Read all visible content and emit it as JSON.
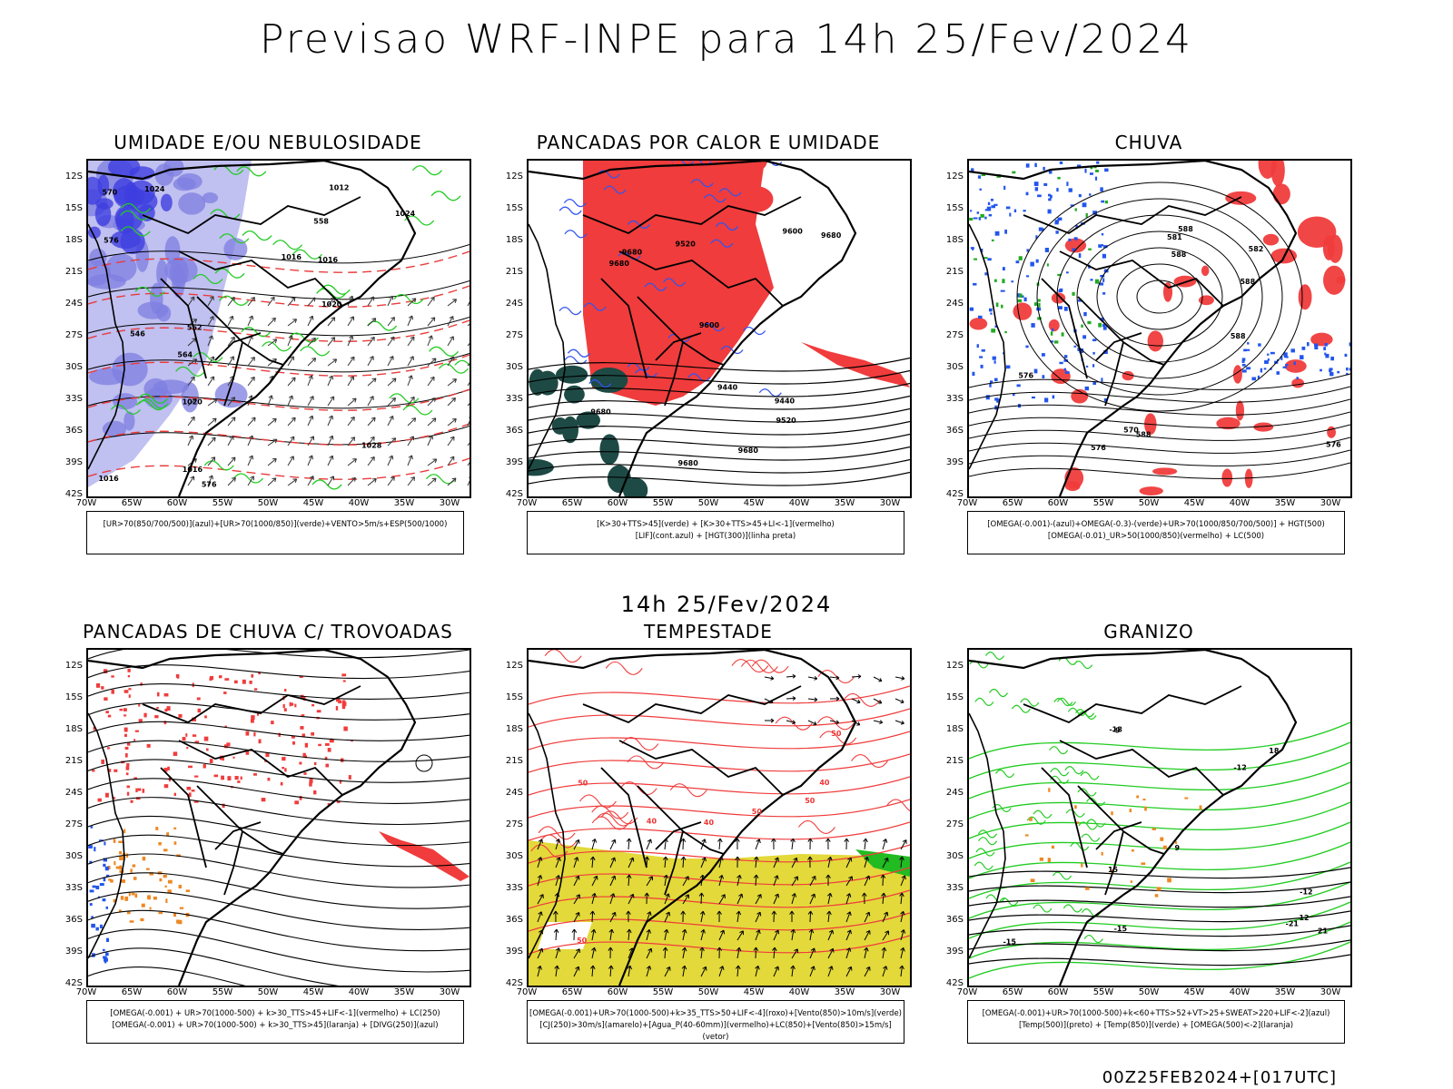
{
  "title": "Previsao WRF-INPE  para 14h 25/Fev/2024",
  "mid_title": "14h 25/Fev/2024",
  "footer": "00Z25FEB2024+[017UTC]",
  "axes": {
    "lat_labels": [
      "12S",
      "15S",
      "18S",
      "21S",
      "24S",
      "27S",
      "30S",
      "33S",
      "36S",
      "39S",
      "42S"
    ],
    "lon_labels": [
      "70W",
      "65W",
      "60W",
      "55W",
      "50W",
      "45W",
      "40W",
      "35W",
      "30W"
    ]
  },
  "panels": [
    {
      "id": "p1",
      "title": "UMIDADE E/OU NEBULOSIDADE",
      "legend_lines": [
        "[UR>70(850/700/500)](azul)+[UR>70(1000/850)](verde)+VENTO>5m/s+ESP(500/1000)"
      ],
      "contour_labels": [
        "1016",
        "1016",
        "1016",
        "1016",
        "1020",
        "1020",
        "1024",
        "1024",
        "1028",
        "1012",
        "576",
        "576",
        "570",
        "564",
        "558",
        "552",
        "546"
      ],
      "colors": {
        "humid_high": "#7e7ee0",
        "humid_mid": "#b9b9f0",
        "humid_low": "#3f3fe0",
        "surface": "#22cc22",
        "thickness": "#e83c3c"
      }
    },
    {
      "id": "p2",
      "title": "PANCADAS POR CALOR E UMIDADE",
      "legend_lines": [
        "[K>30+TTS>45](verde) + [K>30+TTS>45+LI<-1](vermelho)",
        "[LIF](cont.azul) + [HGT(300)](linha preta)"
      ],
      "contour_labels": [
        "9680",
        "9680",
        "9680",
        "9600",
        "9520",
        "9440",
        "9680",
        "9680",
        "9600",
        "9520",
        "9440",
        "9680"
      ],
      "colors": {
        "storm": "#f03c3c",
        "heat": "#1e4a45",
        "lif": "#3355ee"
      }
    },
    {
      "id": "p3",
      "title": "CHUVA",
      "legend_lines": [
        "[OMEGA(-0.001)-(azul)+OMEGA(-0.3)-(verde)+UR>70(1000/850/700/500)] + HGT(500)",
        "[OMEGA(-0.01)_UR>50(1000/850)(vermelho) + LC(500)"
      ],
      "contour_labels": [
        "588",
        "588",
        "588",
        "588",
        "581",
        "582",
        "576",
        "576",
        "588",
        "576",
        "570"
      ],
      "colors": {
        "rain_red": "#f03c3c",
        "rain_blue": "#2255ee",
        "rain_green": "#22aa22"
      }
    },
    {
      "id": "p4",
      "title": "PANCADAS DE CHUVA C/ TROVOADAS",
      "legend_lines": [
        "[OMEGA(-0.001) + UR>70(1000-500) + k>30_TTS>45+LIF<-1](vermelho) + LC(250)",
        "[OMEGA(-0.001) + UR>70(1000-500) + k>30_TTS>45](laranja) + [DIVG(250)](azul)"
      ],
      "contour_labels": [],
      "colors": {
        "storm": "#f03c3c",
        "orange": "#ee8822",
        "blue": "#2255ee"
      }
    },
    {
      "id": "p5",
      "title": "TEMPESTADE",
      "legend_lines": [
        "[OMEGA(-0.001)+UR>70(1000-500)+k>35_TTS>50+LIF<-4](roxo)+[Vento(850)>10m/s](verde)",
        "[CJ(250)>30m/s](amarelo)+[Agua_P(40-60mm)](vermelho)+LC(850)+[Vento(850)>15m/s](vetor)"
      ],
      "contour_labels": [
        "50",
        "50",
        "50",
        "50",
        "40",
        "40",
        "40",
        "50"
      ],
      "colors": {
        "jet": "#e3d93a",
        "water": "#f03c3c",
        "wind": "#22bb22"
      }
    },
    {
      "id": "p6",
      "title": "GRANIZO",
      "legend_lines": [
        "[OMEGA(-0.001)+UR>70(1000-500)+k<60+TTS>52+VT>25+SWEAT>220+LIF<-2](azul)",
        "[Temp(500)](preto) + [Temp(850)](verde) + [OMEGA(500)<-2](laranja)"
      ],
      "contour_labels": [
        "-15",
        "-12",
        "-9",
        "-15",
        "-18",
        "-21",
        "-12",
        "21",
        "18",
        "15",
        "12",
        "9"
      ],
      "colors": {
        "t850": "#22cc22",
        "t500": "#000000",
        "omega": "#ee8822"
      }
    }
  ]
}
